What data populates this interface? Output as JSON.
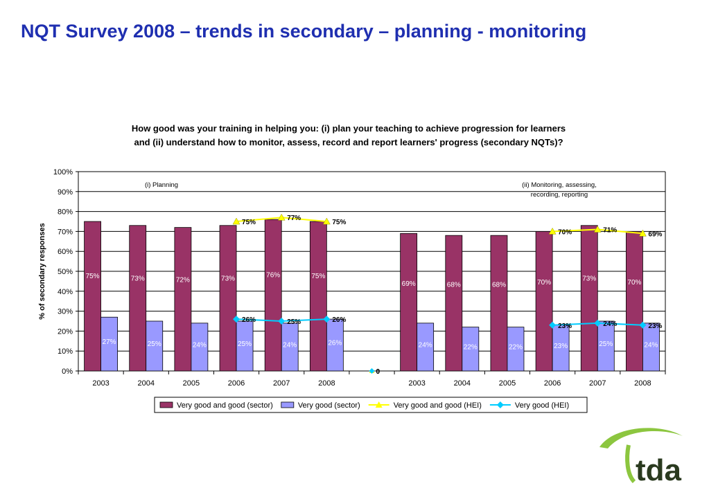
{
  "page": {
    "title": "NQT Survey 2008 – trends in secondary – planning - monitoring"
  },
  "logo": {
    "text": "tda",
    "color": "#8cc63f",
    "text_color": "#2a3a1f"
  },
  "chart_data": {
    "type": "bar",
    "title_lines": [
      "How good was your training in helping you: (i) plan your teaching to achieve progression for learners",
      "and (ii) understand how to monitor, assess, record and report learners' progress (secondary NQTs)?"
    ],
    "ylabel": "% of secondary responses",
    "ylim": [
      0,
      100
    ],
    "yticks": [
      0,
      10,
      20,
      30,
      40,
      50,
      60,
      70,
      80,
      90,
      100
    ],
    "grid": true,
    "legend_position": "bottom",
    "categories": [
      "2003",
      "2004",
      "2005",
      "2006",
      "2007",
      "2008",
      "",
      "2003",
      "2004",
      "2005",
      "2006",
      "2007",
      "2008"
    ],
    "group_labels": [
      "(i) Planning",
      "(ii) Monitoring, assessing,\nrecording, reporting"
    ],
    "series": [
      {
        "name": "Very good and good (sector)",
        "kind": "bar",
        "color": "#993366",
        "values": [
          75,
          73,
          72,
          73,
          76,
          75,
          null,
          69,
          68,
          68,
          70,
          73,
          70
        ],
        "labels": [
          "75%",
          "73%",
          "72%",
          "73%",
          "76%",
          "75%",
          "",
          "69%",
          "68%",
          "68%",
          "70%",
          "73%",
          "70%"
        ]
      },
      {
        "name": "Very good (sector)",
        "kind": "bar",
        "color": "#9999ff",
        "values": [
          27,
          25,
          24,
          25,
          24,
          26,
          null,
          24,
          22,
          22,
          23,
          25,
          24
        ],
        "labels": [
          "27%",
          "25%",
          "24%",
          "25%",
          "24%",
          "26%",
          "",
          "24%",
          "22%",
          "22%",
          "23%",
          "25%",
          "24%"
        ]
      },
      {
        "name": "Very good and good (HEI)",
        "kind": "line",
        "color": "#ffff00",
        "values": [
          null,
          null,
          null,
          75,
          77,
          75,
          0,
          null,
          null,
          null,
          70,
          71,
          69
        ],
        "labels": [
          "",
          "",
          "",
          "75%",
          "77%",
          "75%",
          "0",
          "",
          "",
          "",
          "70%",
          "71%",
          "69%"
        ]
      },
      {
        "name": "Very good (HEI)",
        "kind": "line",
        "color": "#00ccff",
        "values": [
          null,
          null,
          null,
          26,
          25,
          26,
          0,
          null,
          null,
          null,
          23,
          24,
          23
        ],
        "labels": [
          "",
          "",
          "",
          "26%",
          "25%",
          "26%",
          "0",
          "",
          "",
          "",
          "23%",
          "24%",
          "23%"
        ]
      }
    ]
  }
}
